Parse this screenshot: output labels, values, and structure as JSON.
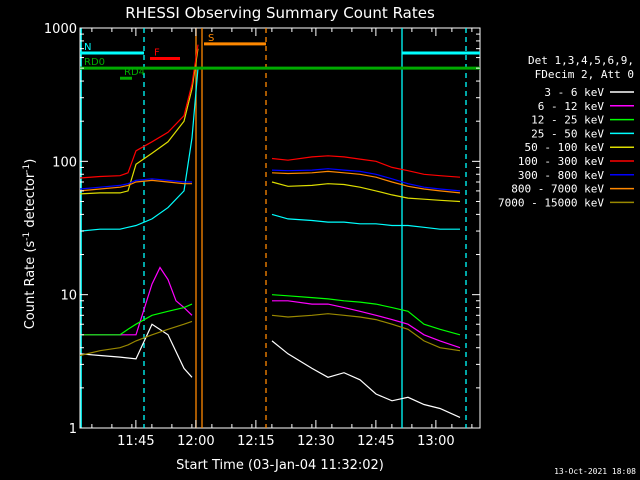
{
  "chart_data": {
    "type": "line",
    "title": "RHESSI Observing Summary Count Rates",
    "xlabel": "Start Time (03-Jan-04 11:32:02)",
    "ylabel": "Count Rate (s",
    "ylabel_sup1": "-1",
    "ylabel_mid": " detector",
    "ylabel_sup2": "-1",
    "ylabel_end": ")",
    "yscale": "log",
    "ylim": [
      1,
      1000
    ],
    "xlim_minutes": [
      0,
      100
    ],
    "xticks": [
      {
        "t": 13.97,
        "label": "11:45"
      },
      {
        "t": 28.97,
        "label": "12:00"
      },
      {
        "t": 43.97,
        "label": "12:15"
      },
      {
        "t": 58.97,
        "label": "12:30"
      },
      {
        "t": 73.97,
        "label": "12:45"
      },
      {
        "t": 88.97,
        "label": "13:00"
      }
    ],
    "yticks": [
      {
        "v": 1,
        "label": "1"
      },
      {
        "v": 10,
        "label": "10"
      },
      {
        "v": 100,
        "label": "100"
      },
      {
        "v": 1000,
        "label": "1000"
      }
    ],
    "legend_header": [
      "Det 1,3,4,5,6,9,",
      "FDecim 2, Att 0"
    ],
    "legend_position": "right",
    "series": [
      {
        "name": "3 - 6 keV",
        "color": "#ffffff",
        "x": [
          0,
          5,
          10,
          14,
          18,
          22,
          26,
          28,
          32,
          48,
          52,
          58,
          62,
          66,
          70,
          74,
          78,
          82,
          86,
          90,
          95
        ],
        "values": [
          3.6,
          3.5,
          3.4,
          3.3,
          6,
          5,
          2.8,
          2.4,
          null,
          4.5,
          3.6,
          2.8,
          2.4,
          2.6,
          2.3,
          1.8,
          1.6,
          1.7,
          1.5,
          1.4,
          1.2
        ]
      },
      {
        "name": "6 - 12 keV",
        "color": "#ff00ff",
        "x": [
          0,
          5,
          10,
          14,
          18,
          20,
          22,
          24,
          26,
          28,
          32,
          48,
          52,
          58,
          62,
          66,
          70,
          74,
          78,
          82,
          86,
          90,
          95
        ],
        "values": [
          5,
          5,
          5,
          5,
          12,
          16,
          13,
          9,
          8,
          7,
          null,
          9,
          9,
          8.5,
          8.5,
          8,
          7.5,
          7,
          6.5,
          6,
          5,
          4.5,
          4
        ]
      },
      {
        "name": "12 - 25 keV",
        "color": "#00ff00",
        "x": [
          0,
          5,
          10,
          12,
          14,
          18,
          22,
          26,
          28,
          32,
          48,
          52,
          58,
          62,
          66,
          70,
          74,
          78,
          82,
          86,
          90,
          95
        ],
        "values": [
          5,
          5,
          5,
          5.5,
          6,
          7,
          7.5,
          8,
          8.5,
          null,
          10,
          9.8,
          9.5,
          9.3,
          9,
          8.8,
          8.5,
          8,
          7.5,
          6,
          5.5,
          5
        ]
      },
      {
        "name": "25 - 50 keV",
        "color": "#00ffff",
        "x": [
          0,
          5,
          10,
          12,
          14,
          18,
          22,
          26,
          28,
          29.5,
          32,
          48,
          52,
          58,
          62,
          66,
          70,
          74,
          78,
          82,
          86,
          90,
          95
        ],
        "values": [
          30,
          31,
          31,
          32,
          33,
          37,
          45,
          60,
          150,
          500,
          null,
          40,
          37,
          36,
          35,
          35,
          34,
          34,
          33,
          33,
          32,
          31,
          31
        ]
      },
      {
        "name": "50 - 100 keV",
        "color": "#dddd00",
        "x": [
          0,
          5,
          10,
          12,
          14,
          18,
          22,
          26,
          28,
          29.5,
          32,
          48,
          52,
          58,
          62,
          66,
          70,
          74,
          78,
          82,
          86,
          90,
          95
        ],
        "values": [
          57,
          58,
          58,
          60,
          95,
          115,
          140,
          200,
          350,
          700,
          null,
          70,
          65,
          66,
          68,
          67,
          64,
          60,
          56,
          53,
          52,
          51,
          50
        ]
      },
      {
        "name": "100 - 300 keV",
        "color": "#ff0000",
        "x": [
          0,
          5,
          10,
          12,
          14,
          18,
          22,
          26,
          28,
          29.5,
          32,
          48,
          52,
          58,
          62,
          66,
          70,
          74,
          78,
          82,
          86,
          90,
          95
        ],
        "values": [
          75,
          77,
          78,
          82,
          120,
          140,
          165,
          220,
          380,
          750,
          null,
          105,
          102,
          108,
          110,
          108,
          104,
          100,
          90,
          85,
          80,
          78,
          76
        ]
      },
      {
        "name": "300 - 800 keV",
        "color": "#0000ff",
        "x": [
          0,
          5,
          10,
          12,
          14,
          18,
          22,
          26,
          28,
          32,
          48,
          52,
          58,
          62,
          66,
          70,
          74,
          78,
          82,
          86,
          90,
          95
        ],
        "values": [
          62,
          64,
          66,
          68,
          72,
          74,
          72,
          70,
          70,
          null,
          86,
          85,
          86,
          88,
          86,
          84,
          80,
          74,
          68,
          64,
          62,
          60
        ]
      },
      {
        "name": "800 - 7000 keV",
        "color": "#ff8800",
        "x": [
          0,
          5,
          10,
          12,
          14,
          18,
          22,
          26,
          28,
          32,
          48,
          52,
          58,
          62,
          66,
          70,
          74,
          78,
          82,
          86,
          90,
          95
        ],
        "values": [
          60,
          62,
          64,
          66,
          70,
          72,
          70,
          68,
          68,
          null,
          82,
          81,
          82,
          84,
          82,
          80,
          76,
          70,
          65,
          62,
          60,
          58
        ]
      },
      {
        "name": "7000 - 15000 keV",
        "color": "#998800",
        "x": [
          0,
          5,
          10,
          12,
          14,
          18,
          22,
          26,
          28,
          32,
          48,
          52,
          58,
          62,
          66,
          70,
          74,
          78,
          82,
          86,
          90,
          95
        ],
        "values": [
          3.5,
          3.8,
          4,
          4.2,
          4.5,
          5,
          5.5,
          6,
          6.3,
          null,
          7,
          6.8,
          7,
          7.2,
          7,
          6.8,
          6.5,
          6,
          5.5,
          4.5,
          4,
          3.8
        ]
      }
    ],
    "flag_bars": [
      {
        "label": "N",
        "color": "#00ffff",
        "x0": 0,
        "x1": 16,
        "value": 650,
        "show_label": true
      },
      {
        "label": "",
        "color": "#00ffff",
        "x0": 80.5,
        "x1": 100,
        "value": 650,
        "show_label": false
      },
      {
        "label": "S",
        "color": "#ff8800",
        "x0": 31,
        "x1": 46.5,
        "value": 760,
        "show_label": true
      },
      {
        "label": "F",
        "color": "#ff0000",
        "x0": 17.5,
        "x1": 25,
        "value": 590,
        "show_label": true
      },
      {
        "label": "RD0",
        "color": "#00aa00",
        "x0": 0,
        "x1": 100,
        "value": 500,
        "show_label": true
      },
      {
        "label": "RD4",
        "color": "#00aa00",
        "x0": 10,
        "x1": 13,
        "value": 420,
        "show_label": true
      }
    ],
    "vertical_lines": [
      {
        "t": 0.3,
        "color": "#00ffff",
        "style": "solid"
      },
      {
        "t": 16.0,
        "color": "#00ffff",
        "style": "dashed"
      },
      {
        "t": 29.0,
        "color": "#ff8800",
        "style": "solid"
      },
      {
        "t": 30.5,
        "color": "#ff8800",
        "style": "solid"
      },
      {
        "t": 46.5,
        "color": "#ff8800",
        "style": "dashed"
      },
      {
        "t": 80.5,
        "color": "#00ffff",
        "style": "solid"
      },
      {
        "t": 96.5,
        "color": "#00ffff",
        "style": "dashed"
      }
    ]
  },
  "footer": {
    "timestamp": "13-Oct-2021 18:08"
  }
}
